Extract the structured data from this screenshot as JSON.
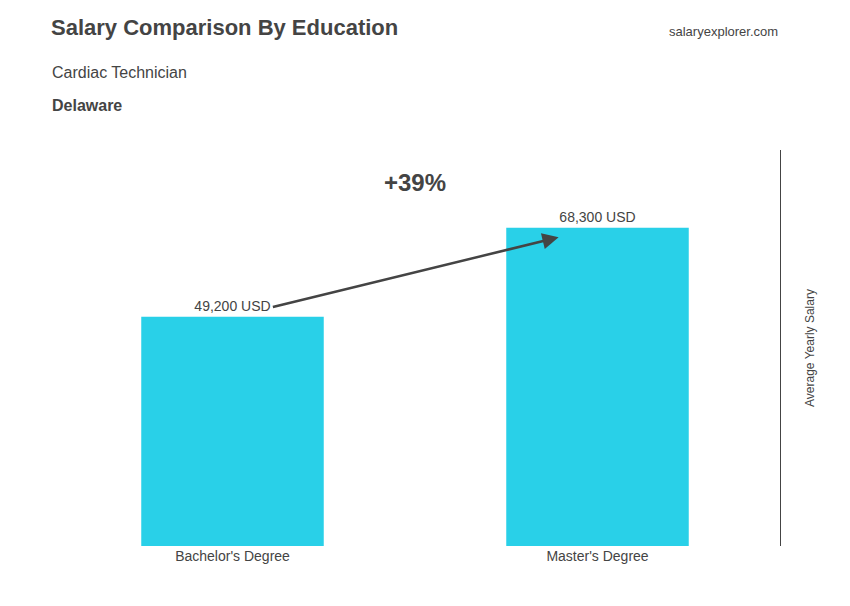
{
  "chart_data": {
    "type": "bar",
    "title": "Salary Comparison By Education",
    "subtitle": "Cardiac Technician",
    "categories": [
      "Bachelor's Degree",
      "Master's Degree"
    ],
    "values": [
      49200,
      68300
    ],
    "value_labels": [
      "49,200 USD",
      "68,300 USD"
    ],
    "data_labels": true,
    "color": "#29d0e8",
    "ylabel": "Average Yearly Salary",
    "ylim": [
      0,
      85000
    ],
    "tick_labels": "x",
    "grid": false,
    "annotations": [
      {
        "text": "Delaware"
      },
      {
        "text": "salaryexplorer.com"
      },
      {
        "text": "+39%",
        "from": "Bachelor's Degree",
        "to": "Master's Degree"
      }
    ]
  }
}
